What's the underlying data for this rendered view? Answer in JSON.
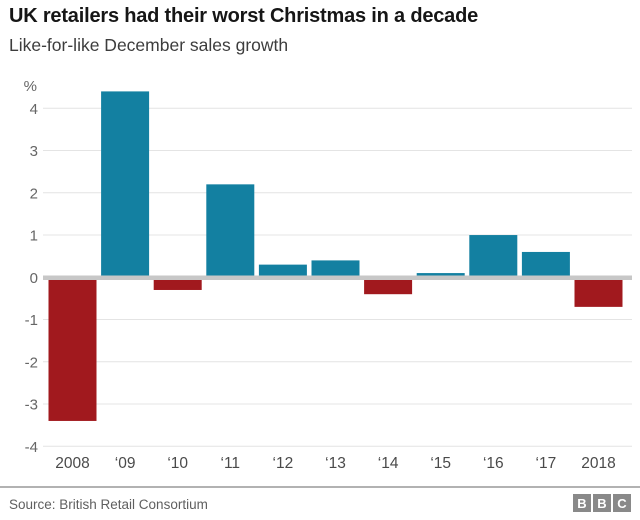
{
  "header": {
    "title": "UK retailers had their worst Christmas in a decade",
    "subtitle": "Like-for-like December sales growth"
  },
  "chart_data": {
    "type": "bar",
    "title": "UK retailers had their worst Christmas in a decade",
    "subtitle": "Like-for-like December sales growth",
    "unit_label": "%",
    "xlabel": "",
    "ylabel": "%",
    "categories": [
      "2008",
      "‘09",
      "‘10",
      "‘11",
      "‘12",
      "‘13",
      "‘14",
      "‘15",
      "‘16",
      "‘17",
      "2018"
    ],
    "values": [
      -3.4,
      4.4,
      -0.3,
      2.2,
      0.3,
      0.4,
      -0.4,
      0.1,
      1.0,
      0.6,
      -0.7
    ],
    "y_ticks": [
      4,
      3,
      2,
      1,
      0,
      -1,
      -2,
      -3,
      -4
    ],
    "ylim": [
      -4,
      4.5
    ],
    "grid": true,
    "legend": false,
    "positive_color": "#1380A1",
    "negative_color": "#A1191E",
    "gridline_color": "#e4e4e4",
    "zero_line_color": "#c7c7c7"
  },
  "footer": {
    "source": "Source: British Retail Consortium",
    "logo": [
      "B",
      "B",
      "C"
    ]
  }
}
